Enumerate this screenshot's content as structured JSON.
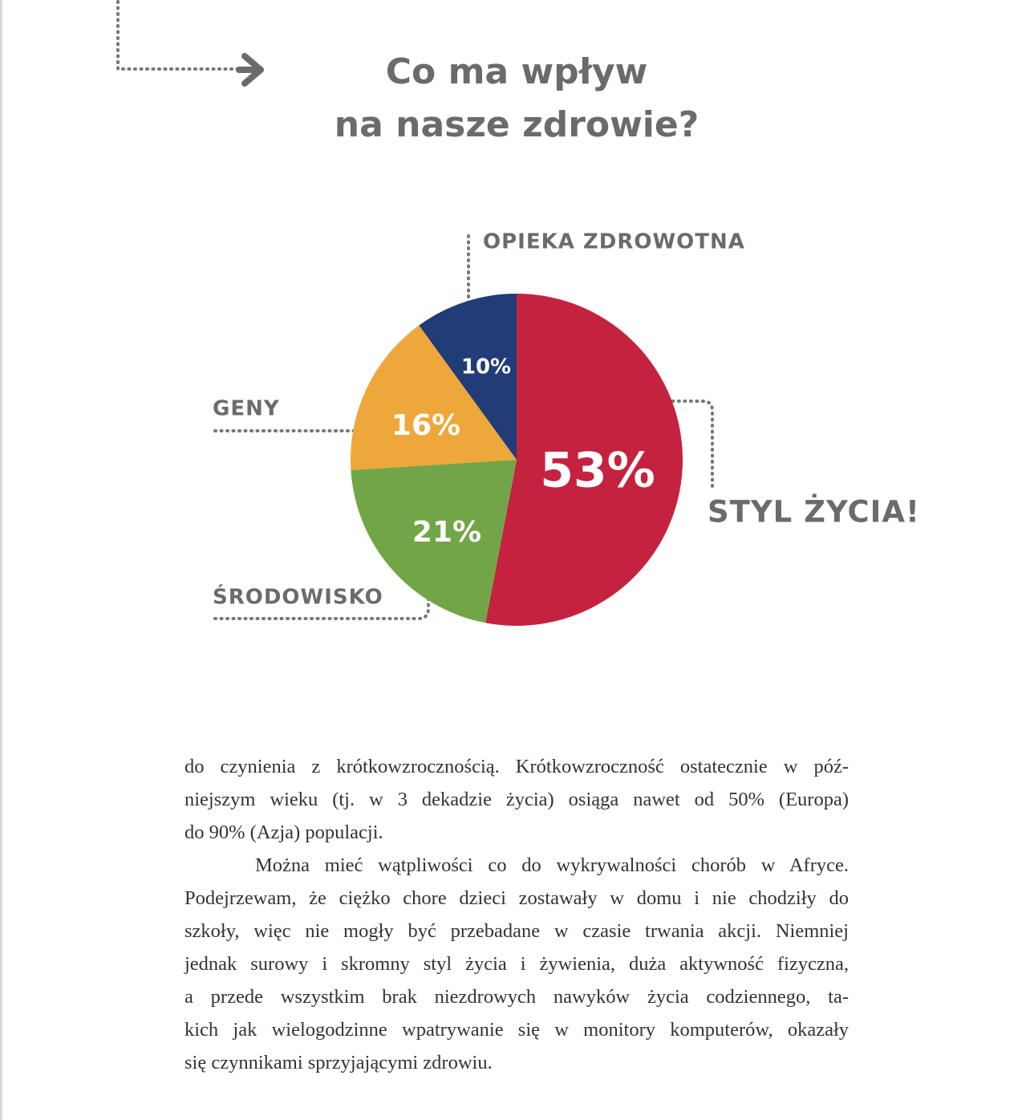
{
  "chart_data": {
    "type": "pie",
    "title": [
      "Co ma wpływ",
      "na nasze zdrowie?"
    ],
    "categories": [
      "STYL ŻYCIA!",
      "ŚRODOWISKO",
      "GENY",
      "OPIEKA ZDROWOTNA"
    ],
    "values": [
      53,
      21,
      16,
      10
    ],
    "value_labels": [
      "53%",
      "21%",
      "16%",
      "10%"
    ],
    "colors": [
      "#c4223e",
      "#72a547",
      "#eea73b",
      "#213c77"
    ]
  },
  "body": {
    "paragraphs": [
      [
        "do czynienia z krótkowzrocznością. Krótkowzroczność ostatecznie w póź-",
        "niejszym wieku (tj. w 3 dekadzie życia) osiąga nawet od 50% (Europa)",
        "do 90% (Azja) populacji."
      ],
      [
        "Można mieć wątpliwości co do wykrywalności chorób w Afryce.",
        "Podejrzewam, że ciężko chore dzieci zostawały w domu i nie chodziły do",
        "szkoły, więc nie mogły być przebadane w czasie trwania akcji. Niemniej",
        "jednak surowy i skromny styl życia i żywienia, duża aktywność fizyczna,",
        "a przede wszystkim brak niezdrowych nawyków życia codziennego, ta-",
        "kich jak wielogodzinne wpatrywanie się w monitory komputerów, okazały",
        "się czynnikami sprzyjającymi zdrowiu."
      ]
    ]
  }
}
